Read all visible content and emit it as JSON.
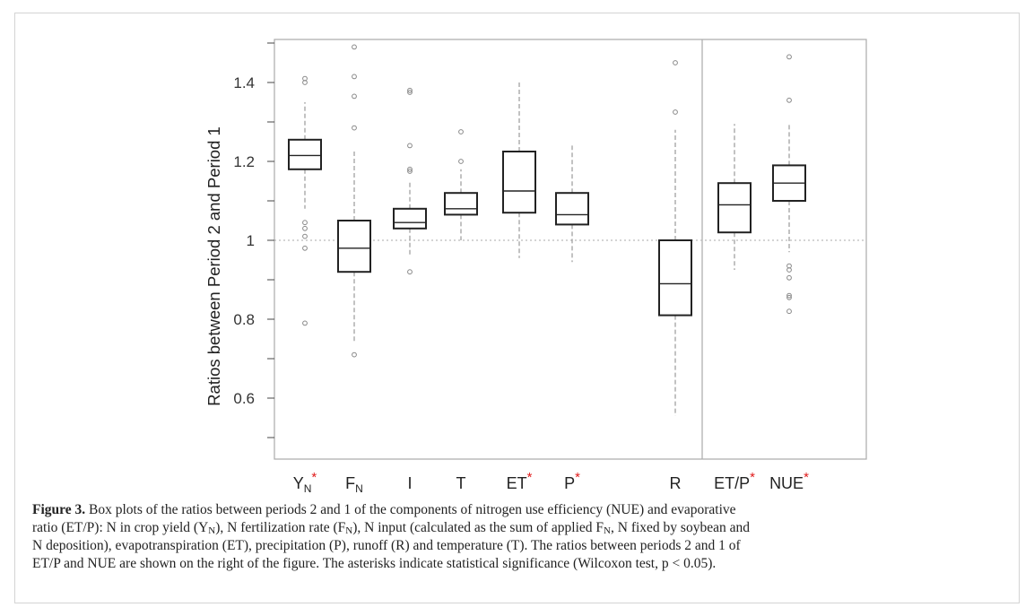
{
  "chart_data": {
    "type": "box",
    "ylabel": "Ratios between Period 2 and Period 1",
    "ylim": [
      0.45,
      1.5
    ],
    "y_ticks": [
      "0.6",
      "0.8",
      "1",
      "1.2",
      "1.4"
    ],
    "y_tick_values": [
      0.6,
      0.8,
      1.0,
      1.2,
      1.4
    ],
    "reference_line": 1.0,
    "grid": false,
    "boxes": [
      {
        "label_main": "Y",
        "label_sub": "N",
        "significant": true,
        "panel": "left",
        "q1": 1.18,
        "median": 1.215,
        "q3": 1.255,
        "whisker_low": 1.08,
        "whisker_high": 1.35,
        "outliers": [
          1.41,
          1.4,
          1.045,
          1.03,
          1.01,
          0.98,
          0.79
        ]
      },
      {
        "label_main": "F",
        "label_sub": "N",
        "significant": false,
        "panel": "left",
        "q1": 0.92,
        "median": 0.98,
        "q3": 1.05,
        "whisker_low": 0.745,
        "whisker_high": 1.23,
        "outliers": [
          1.49,
          1.415,
          1.365,
          1.285,
          0.71
        ]
      },
      {
        "label_main": "I",
        "label_sub": "",
        "significant": false,
        "panel": "left",
        "q1": 1.03,
        "median": 1.045,
        "q3": 1.08,
        "whisker_low": 0.96,
        "whisker_high": 1.15,
        "outliers": [
          1.38,
          1.375,
          1.24,
          1.18,
          1.175,
          0.92
        ]
      },
      {
        "label_main": "T",
        "label_sub": "",
        "significant": false,
        "panel": "left",
        "q1": 1.065,
        "median": 1.08,
        "q3": 1.12,
        "whisker_low": 1.0,
        "whisker_high": 1.18,
        "outliers": [
          1.275,
          1.2
        ]
      },
      {
        "label_main": "ET",
        "label_sub": "",
        "significant": true,
        "panel": "left",
        "q1": 1.07,
        "median": 1.125,
        "q3": 1.225,
        "whisker_low": 0.955,
        "whisker_high": 1.405,
        "outliers": []
      },
      {
        "label_main": "P",
        "label_sub": "",
        "significant": true,
        "panel": "left",
        "q1": 1.04,
        "median": 1.065,
        "q3": 1.12,
        "whisker_low": 0.945,
        "whisker_high": 1.24,
        "outliers": []
      },
      {
        "label_main": "R",
        "label_sub": "",
        "significant": false,
        "panel": "left",
        "q1": 0.81,
        "median": 0.89,
        "q3": 1.0,
        "whisker_low": 0.555,
        "whisker_high": 1.28,
        "outliers": [
          1.45,
          1.325
        ]
      },
      {
        "label_main": "ET/P",
        "label_sub": "",
        "significant": true,
        "panel": "right",
        "q1": 1.02,
        "median": 1.09,
        "q3": 1.145,
        "whisker_low": 0.925,
        "whisker_high": 1.295,
        "outliers": []
      },
      {
        "label_main": "NUE",
        "label_sub": "",
        "significant": true,
        "panel": "right",
        "q1": 1.1,
        "median": 1.145,
        "q3": 1.19,
        "whisker_low": 0.97,
        "whisker_high": 1.295,
        "outliers": [
          1.465,
          1.355,
          0.935,
          0.925,
          0.905,
          0.86,
          0.855,
          0.82
        ]
      }
    ]
  },
  "colors": {
    "box_stroke": "#222222",
    "whisker": "#999999",
    "outlier": "#888888",
    "reference_line": "#bbbbbb",
    "axis": "#aaaaaa",
    "significance_asterisk": "#e01b1b"
  },
  "caption": {
    "figure_label": "Figure 3.",
    "line1_a": " Box plots of the ratios between periods 2 and 1 of the components of nitrogen use efficiency (NUE) and evaporative",
    "line2_a": "ratio (ET/P): N in crop yield (Y",
    "sub_n_1": "N",
    "line2_b": "), N fertilization rate (F",
    "sub_n_2": "N",
    "line2_c": "), N input (calculated as the sum of applied F",
    "sub_n_3": "N",
    "line2_d": ", N fixed by soybean and",
    "line3": "N deposition), evapotranspiration (ET), precipitation (P), runoff (R) and temperature (T). The ratios between periods 2 and 1 of",
    "line4": "ET/P and NUE are shown on the right of the figure. The asterisks indicate statistical significance (Wilcoxon test, p < 0.05)."
  }
}
